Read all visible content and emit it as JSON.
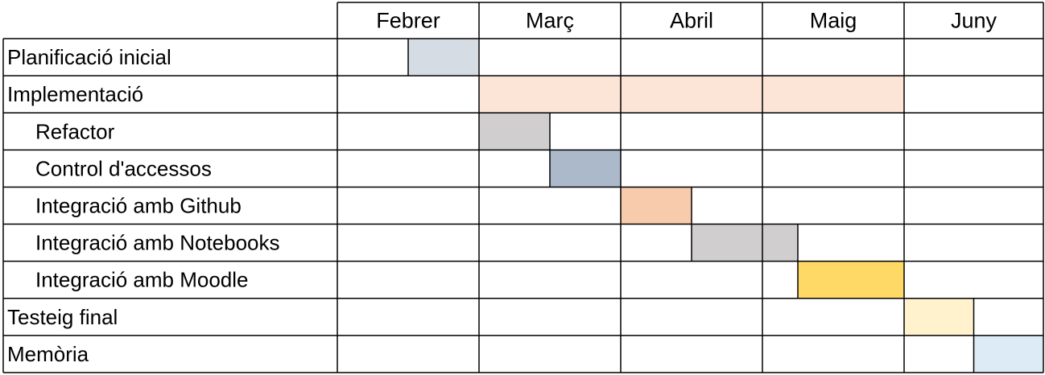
{
  "chart_data": {
    "type": "gantt",
    "months": [
      "Febrer",
      "Març",
      "Abril",
      "Maig",
      "Juny"
    ],
    "tasks": [
      {
        "label": "Planificació inicial",
        "indent": 0,
        "start": 0.5,
        "end": 1.0,
        "color": "#d6dce4"
      },
      {
        "label": "Implementació",
        "indent": 0,
        "start": 1.0,
        "end": 4.0,
        "color": "#fce4d6"
      },
      {
        "label": "Refactor",
        "indent": 1,
        "start": 1.0,
        "end": 1.5,
        "color": "#d0cece"
      },
      {
        "label": "Control d'accessos",
        "indent": 1,
        "start": 1.5,
        "end": 2.0,
        "color": "#acb9ca"
      },
      {
        "label": "Integració amb Github",
        "indent": 1,
        "start": 2.0,
        "end": 2.5,
        "color": "#f8cbad"
      },
      {
        "label": "Integració amb Notebooks",
        "indent": 1,
        "start": 2.5,
        "end": 3.25,
        "color": "#d0cece"
      },
      {
        "label": "Integració amb Moodle",
        "indent": 1,
        "start": 3.25,
        "end": 4.0,
        "color": "#ffd966"
      },
      {
        "label": "Testeig final",
        "indent": 0,
        "start": 4.0,
        "end": 4.5,
        "color": "#fff2cc"
      },
      {
        "label": "Memòria",
        "indent": 0,
        "start": 4.5,
        "end": 5.0,
        "color": "#ddebf7"
      }
    ]
  }
}
